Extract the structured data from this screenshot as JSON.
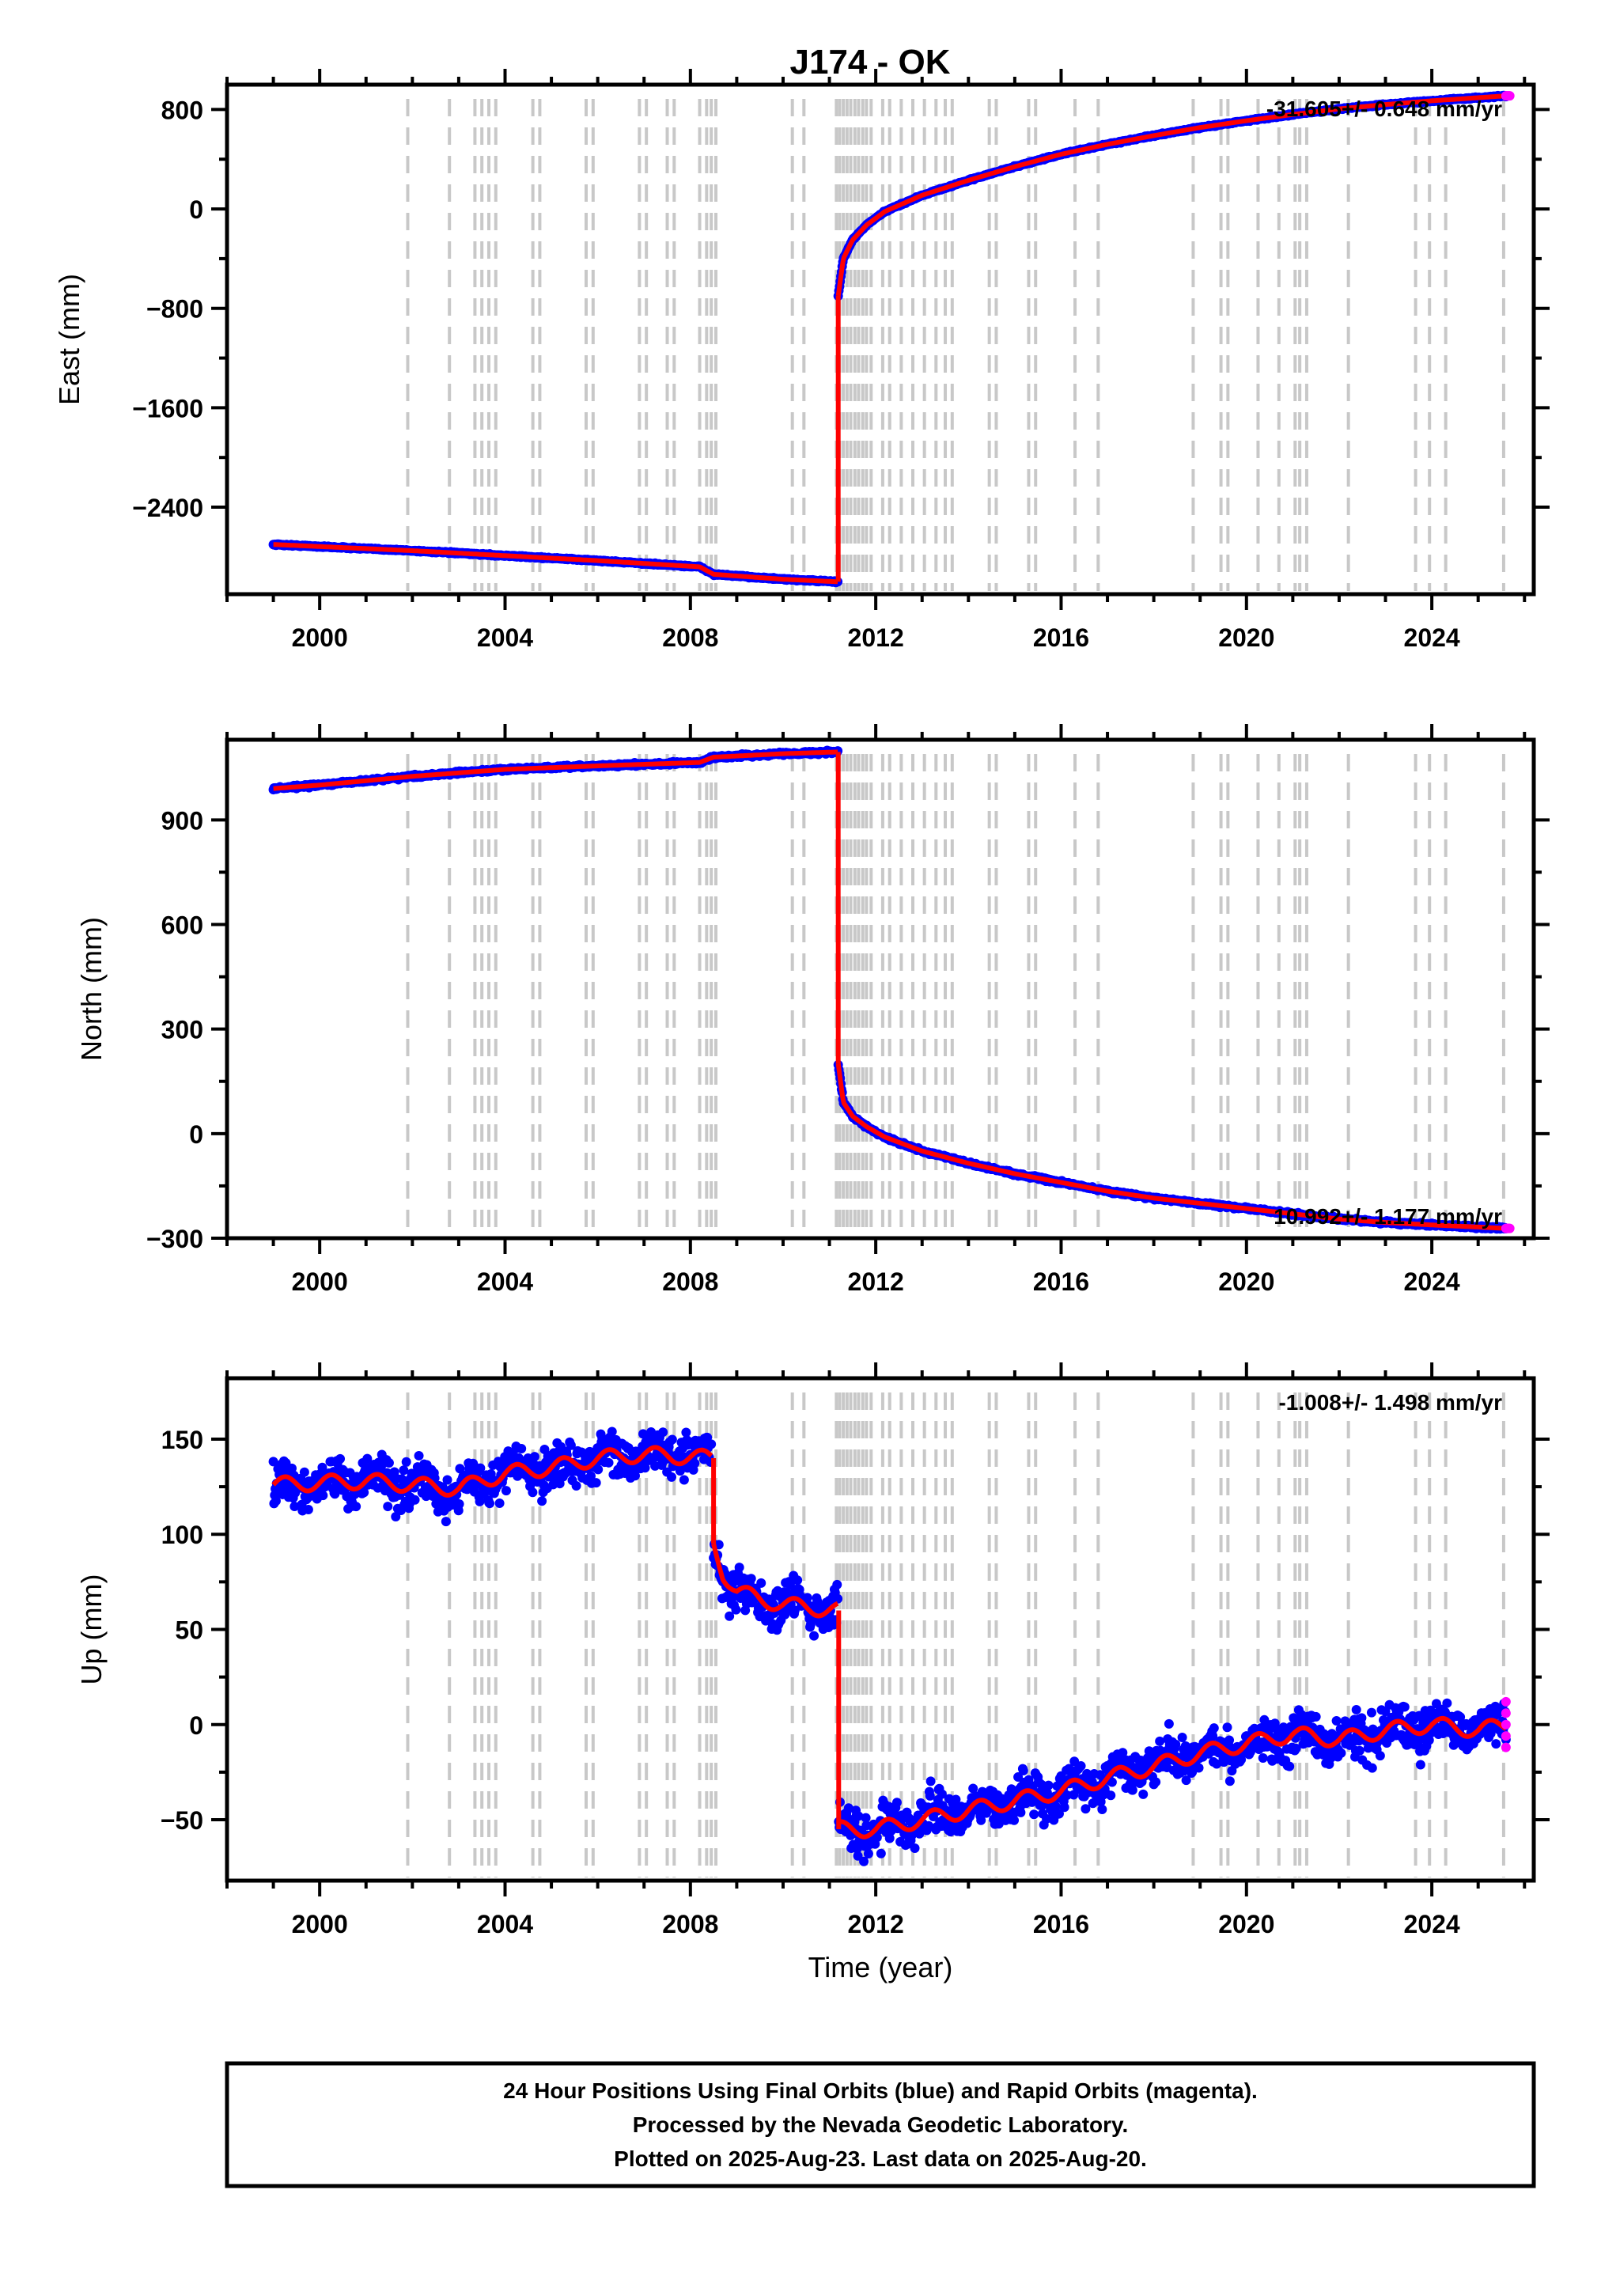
{
  "title": "J174 - OK",
  "footer": {
    "line1": "24 Hour Positions Using Final Orbits (blue) and Rapid Orbits (magenta).",
    "line2": "Processed by the Nevada Geodetic Laboratory.",
    "line3": "Plotted on 2025-Aug-23. Last data on 2025-Aug-20."
  },
  "colors": {
    "final_orbits": "#0000ff",
    "rapid_orbits": "#ff00ff",
    "model": "#ff0000",
    "event_lines": "#c8c8c8"
  },
  "chart_data": [
    {
      "type": "scatter",
      "title": "",
      "xlabel": "",
      "ylabel": "East (mm)",
      "xlim": [
        1998.0,
        2026.2
      ],
      "ylim": [
        -3100,
        1000
      ],
      "xticks": [
        2000,
        2004,
        2008,
        2012,
        2016,
        2020,
        2024
      ],
      "yticks": [
        -2400,
        -1600,
        -800,
        0,
        800
      ],
      "ytick_labels": [
        "−2400",
        "−1600",
        "−800",
        "0",
        "800"
      ],
      "rate_label": "-31.605+/- 0.648 mm/yr",
      "rate_position": "top-right",
      "noise": 6,
      "series": [
        {
          "x": [
            1999.0,
            2002.0,
            2004.0,
            2006.0,
            2008.2,
            2008.5,
            2010.0,
            2011.18
          ],
          "y": [
            -2700,
            -2750,
            -2790,
            -2830,
            -2880,
            -2940,
            -2980,
            -3000
          ]
        },
        {
          "x": [
            2011.19,
            2011.3,
            2011.5,
            2011.8,
            2012.2,
            2013.0,
            2014.0,
            2015.0,
            2016.0,
            2017.0,
            2018.0,
            2019.0,
            2020.0,
            2021.0,
            2022.0,
            2023.0,
            2024.0,
            2025.0,
            2025.6
          ],
          "y": [
            -700,
            -400,
            -250,
            -130,
            -20,
            110,
            230,
            340,
            440,
            520,
            590,
            655,
            710,
            760,
            805,
            840,
            870,
            895,
            910
          ]
        }
      ]
    },
    {
      "type": "scatter",
      "title": "",
      "xlabel": "",
      "ylabel": "North (mm)",
      "xlim": [
        1998.0,
        2026.2
      ],
      "ylim": [
        -300,
        1130
      ],
      "xticks": [
        2000,
        2004,
        2008,
        2012,
        2016,
        2020,
        2024
      ],
      "yticks": [
        -300,
        0,
        300,
        600,
        900
      ],
      "ytick_labels": [
        "−300",
        "0",
        "300",
        "600",
        "900"
      ],
      "rate_label": "10.992+/- 1.177 mm/yr",
      "rate_position": "bottom-right",
      "noise": 4,
      "series": [
        {
          "x": [
            1999.0,
            2000.0,
            2002.0,
            2004.0,
            2006.0,
            2008.2,
            2008.5,
            2010.0,
            2011.18
          ],
          "y": [
            990,
            1000,
            1025,
            1045,
            1055,
            1065,
            1080,
            1090,
            1095
          ]
        },
        {
          "x": [
            2011.19,
            2011.3,
            2011.5,
            2011.8,
            2012.2,
            2013.0,
            2014.0,
            2015.0,
            2016.0,
            2017.0,
            2018.0,
            2019.0,
            2020.0,
            2021.0,
            2022.0,
            2023.0,
            2024.0,
            2025.0,
            2025.6
          ],
          "y": [
            200,
            90,
            50,
            20,
            -10,
            -50,
            -85,
            -115,
            -140,
            -165,
            -185,
            -200,
            -215,
            -230,
            -245,
            -255,
            -262,
            -268,
            -272
          ]
        }
      ]
    },
    {
      "type": "scatter",
      "title": "",
      "xlabel": "Time (year)",
      "ylabel": "Up (mm)",
      "xlim": [
        1998.0,
        2026.2
      ],
      "ylim": [
        -82,
        182
      ],
      "xticks": [
        2000,
        2004,
        2008,
        2012,
        2016,
        2020,
        2024
      ],
      "yticks": [
        -50,
        0,
        50,
        100,
        150
      ],
      "ytick_labels": [
        "−50",
        "0",
        "50",
        "100",
        "150"
      ],
      "rate_label": "-1.008+/- 1.498 mm/yr",
      "rate_position": "top-right",
      "noise": 11,
      "series": [
        {
          "x": [
            1999.0,
            2001.0,
            2003.0,
            2004.0,
            2005.0,
            2006.0,
            2007.0,
            2008.45
          ],
          "y": [
            126,
            128,
            124,
            132,
            135,
            140,
            142,
            140
          ]
        },
        {
          "x": [
            2008.5,
            2008.7,
            2009.0,
            2009.5,
            2010.0,
            2011.18
          ],
          "y": [
            95,
            80,
            70,
            66,
            63,
            60
          ]
        },
        {
          "x": [
            2011.2,
            2012.0,
            2013.0,
            2014.0,
            2015.0,
            2016.0,
            2017.0,
            2018.0,
            2019.0,
            2020.0,
            2021.0,
            2022.0,
            2023.0,
            2024.0,
            2025.0,
            2025.6
          ],
          "y": [
            -55,
            -55,
            -50,
            -45,
            -40,
            -35,
            -28,
            -22,
            -15,
            -10,
            -5,
            -8,
            -3,
            0,
            -3,
            0
          ]
        }
      ]
    }
  ],
  "event_lines_years": [
    2001.9,
    2002.8,
    2003.35,
    2003.5,
    2003.65,
    2003.8,
    2004.6,
    2004.75,
    2005.75,
    2005.9,
    2006.9,
    2007.05,
    2007.5,
    2007.65,
    2008.2,
    2008.35,
    2008.45,
    2008.55,
    2010.2,
    2010.45,
    2011.15,
    2011.22,
    2011.3,
    2011.38,
    2011.46,
    2011.55,
    2011.63,
    2011.72,
    2011.8,
    2011.9,
    2012.15,
    2012.3,
    2012.55,
    2012.8,
    2013.05,
    2013.3,
    2013.5,
    2013.65,
    2014.45,
    2014.6,
    2015.3,
    2015.45,
    2016.3,
    2016.8,
    2018.85,
    2019.45,
    2019.6,
    2020.25,
    2020.7,
    2021.05,
    2021.15,
    2021.3,
    2022.2,
    2023.65,
    2023.95,
    2024.3,
    2025.55
  ]
}
